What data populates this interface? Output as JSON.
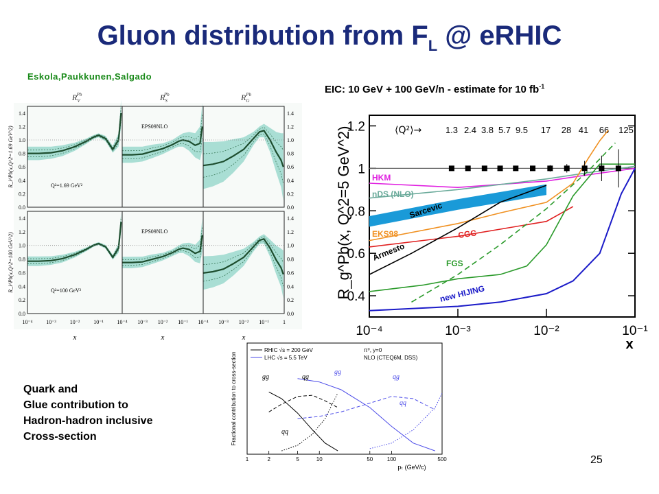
{
  "slide": {
    "title_main": "Gluon distribution from F",
    "title_sub": "L",
    "title_tail": " @ eRHIC",
    "authors": "Eskola,Paukkunen,Salgado",
    "eic_caption": "EIC: 10 GeV + 100 GeV/n - estimate for 10 fb",
    "eic_caption_sup": "-1",
    "quark_lines": [
      "Quark and",
      "Glue contribution to",
      "Hadron-hadron inclusive",
      "Cross-section"
    ],
    "page_number": "25"
  },
  "colors": {
    "title": "#1a2a7a",
    "authors": "#1a8a1a",
    "band": "#8fd4c8",
    "central": "#1d4d2e",
    "hkm": "#e020e0",
    "nds": "#6aaa9a",
    "sarcevic": "#1a9ad8",
    "eks98": "#f09020",
    "cgc": "#e02020",
    "armesto": "#000000",
    "fgs": "#2a9a2a",
    "hijing": "#1a1ac8"
  },
  "chart_data": [
    {
      "type": "line",
      "panel": "EPS09 nuclear modification (grid of 6 panels)",
      "column_titles": [
        "R",
        "R",
        "R"
      ],
      "column_subs": [
        "V",
        "S",
        "G"
      ],
      "column_sups": [
        "Pb",
        "Pb",
        "Pb"
      ],
      "row_ylabels": [
        "R_i^Pb(x,Q^2=1.69 GeV^2)",
        "R_i^Pb(x,Q^2=100 GeV^2)"
      ],
      "panel_labels": [
        "EPS09NLO",
        "EPS09NLO"
      ],
      "q2_labels": [
        "Q²=1.69 GeV²",
        "Q²=100 GeV²"
      ],
      "xlabel": "x",
      "x_ticks": [
        "10⁻⁴",
        "10⁻³",
        "10⁻²",
        "10⁻¹",
        "1"
      ],
      "y_ticks": [
        "0.0",
        "0.2",
        "0.4",
        "0.6",
        "0.8",
        "1.0",
        "1.2",
        "1.4"
      ],
      "ylim": [
        0,
        1.5
      ],
      "xscale": "log",
      "xlim": [
        0.0001,
        1
      ],
      "curves": {
        "x": [
          0.0001,
          0.0003,
          0.001,
          0.003,
          0.01,
          0.03,
          0.06,
          0.1,
          0.2,
          0.4,
          0.7,
          0.9
        ],
        "valence": {
          "central": [
            0.8,
            0.8,
            0.81,
            0.84,
            0.9,
            0.98,
            1.04,
            1.07,
            1.02,
            0.86,
            1.0,
            1.4
          ],
          "band": [
            0.1,
            0.1,
            0.09,
            0.08,
            0.06,
            0.04,
            0.03,
            0.03,
            0.04,
            0.05,
            0.1,
            0.2
          ]
        },
        "sea": {
          "central": [
            0.78,
            0.78,
            0.79,
            0.83,
            0.87,
            0.93,
            0.98,
            1.0,
            0.98,
            0.92,
            0.95,
            1.2
          ],
          "band": [
            0.12,
            0.12,
            0.11,
            0.1,
            0.08,
            0.07,
            0.08,
            0.1,
            0.14,
            0.18,
            0.25,
            0.35
          ]
        },
        "gluon": {
          "central": [
            0.62,
            0.64,
            0.68,
            0.76,
            0.86,
            1.02,
            1.12,
            1.14,
            1.0,
            0.82,
            0.7,
            0.6
          ],
          "band": [
            0.35,
            0.33,
            0.3,
            0.25,
            0.18,
            0.1,
            0.08,
            0.1,
            0.18,
            0.3,
            0.4,
            0.5
          ]
        }
      }
    },
    {
      "type": "line",
      "panel": "EIC estimate of gluon nuclear modification",
      "ylabel": "R_g^Pb(x, Q^2=5 GeV^2)",
      "xlabel": "x",
      "xscale": "log",
      "xlim": [
        0.0001,
        0.1
      ],
      "ylim": [
        0.3,
        1.25
      ],
      "x_ticks": [
        "10⁻⁴",
        "10⁻³",
        "10⁻²",
        "10⁻¹"
      ],
      "y_ticks": [
        "0.4",
        "0.6",
        "0.8",
        "1",
        "1.2"
      ],
      "q2_header": "⟨Q²⟩→",
      "q2_values": [
        "1.3",
        "2.4",
        "3.8",
        "5.7",
        "9.5",
        "17",
        "28",
        "41",
        "66",
        "125"
      ],
      "points": {
        "x": [
          0.00085,
          0.0013,
          0.002,
          0.003,
          0.0045,
          0.007,
          0.011,
          0.017,
          0.027,
          0.042,
          0.065
        ],
        "y": [
          1.0,
          1.0,
          1.0,
          1.0,
          1.0,
          1.0,
          1.0,
          1.0,
          1.0,
          1.0,
          1.0
        ],
        "err": [
          0.005,
          0.005,
          0.005,
          0.006,
          0.008,
          0.01,
          0.015,
          0.02,
          0.035,
          0.06,
          0.09
        ]
      },
      "series": [
        {
          "name": "HKM",
          "x": [
            0.0001,
            0.001,
            0.01,
            0.03,
            0.1
          ],
          "y": [
            0.93,
            0.91,
            0.94,
            0.97,
            1.0
          ]
        },
        {
          "name": "nDS (NLO)",
          "x": [
            0.0001,
            0.001,
            0.01,
            0.03,
            0.1
          ],
          "y": [
            0.86,
            0.9,
            0.95,
            0.98,
            1.01
          ]
        },
        {
          "name": "Sarcevic",
          "x": [
            0.0001,
            0.001,
            0.01
          ],
          "y": [
            0.75,
            0.83,
            0.9
          ],
          "band_width": 0.05
        },
        {
          "name": "EKS98",
          "x": [
            0.0001,
            0.001,
            0.003,
            0.01,
            0.02,
            0.03,
            0.04,
            0.05
          ],
          "y": [
            0.66,
            0.74,
            0.79,
            0.84,
            0.93,
            1.05,
            1.13,
            1.18
          ]
        },
        {
          "name": "CGC",
          "x": [
            0.0001,
            0.001,
            0.01,
            0.02
          ],
          "y": [
            0.63,
            0.68,
            0.75,
            0.82
          ]
        },
        {
          "name": "Armesto",
          "x": [
            0.0001,
            0.0003,
            0.001,
            0.003,
            0.01
          ],
          "y": [
            0.5,
            0.6,
            0.72,
            0.84,
            0.92
          ]
        },
        {
          "name": "FGS",
          "x": [
            0.0001,
            0.0004,
            0.001,
            0.003,
            0.006,
            0.01,
            0.02,
            0.04,
            0.1
          ],
          "y": [
            0.42,
            0.45,
            0.48,
            0.5,
            0.54,
            0.64,
            0.87,
            1.02,
            1.02
          ]
        },
        {
          "name": "FGS (dashed)",
          "x": [
            0.0003,
            0.001,
            0.003,
            0.01,
            0.03,
            0.06
          ],
          "y": [
            0.37,
            0.5,
            0.64,
            0.81,
            0.99,
            1.12
          ]
        },
        {
          "name": "new HIJING",
          "x": [
            0.0001,
            0.001,
            0.003,
            0.01,
            0.02,
            0.04,
            0.07,
            0.1
          ],
          "y": [
            0.33,
            0.35,
            0.37,
            0.41,
            0.47,
            0.6,
            0.88,
            1.0
          ]
        }
      ]
    },
    {
      "type": "line",
      "panel": "Fractional contribution to cross-section",
      "ylabel": "Fractional contribution to cross-section",
      "xlabel": "pₜ (GeV/c)",
      "xscale": "log",
      "xlim": [
        1,
        500
      ],
      "ylim": [
        0,
        1
      ],
      "x_ticks": [
        "1",
        "2",
        "5",
        "10",
        "50",
        "100",
        "500"
      ],
      "legend": [
        "RHIC  √s = 200 GeV",
        "LHC   √s = 5.5 TeV"
      ],
      "legend_right": [
        "π⁰, y=0",
        "NLO (CTEQ6M, DSS)"
      ],
      "curve_labels": [
        "gg",
        "qg",
        "qq",
        "gg",
        "qg",
        "qq"
      ],
      "series": [
        {
          "name": "gg",
          "x": [
            2,
            3,
            5,
            8,
            12,
            18
          ],
          "y": [
            0.56,
            0.5,
            0.37,
            0.22,
            0.1,
            0.03
          ]
        },
        {
          "name": "qg",
          "x": [
            2,
            3,
            5,
            8,
            12,
            18
          ],
          "y": [
            0.38,
            0.45,
            0.52,
            0.53,
            0.48,
            0.42
          ]
        },
        {
          "name": "qq",
          "x": [
            3,
            5,
            8,
            12,
            18
          ],
          "y": [
            0.03,
            0.08,
            0.18,
            0.32,
            0.55
          ]
        },
        {
          "name": "gg",
          "x": [
            5,
            10,
            20,
            50,
            100,
            200,
            400
          ],
          "y": [
            0.68,
            0.65,
            0.58,
            0.42,
            0.25,
            0.1,
            0.03
          ]
        },
        {
          "name": "qg",
          "x": [
            5,
            10,
            20,
            50,
            100,
            200,
            400
          ],
          "y": [
            0.32,
            0.34,
            0.38,
            0.46,
            0.52,
            0.5,
            0.4
          ]
        },
        {
          "name": "qq",
          "x": [
            50,
            100,
            200,
            400,
            500
          ],
          "y": [
            0.05,
            0.1,
            0.22,
            0.42,
            0.55
          ]
        }
      ]
    }
  ]
}
